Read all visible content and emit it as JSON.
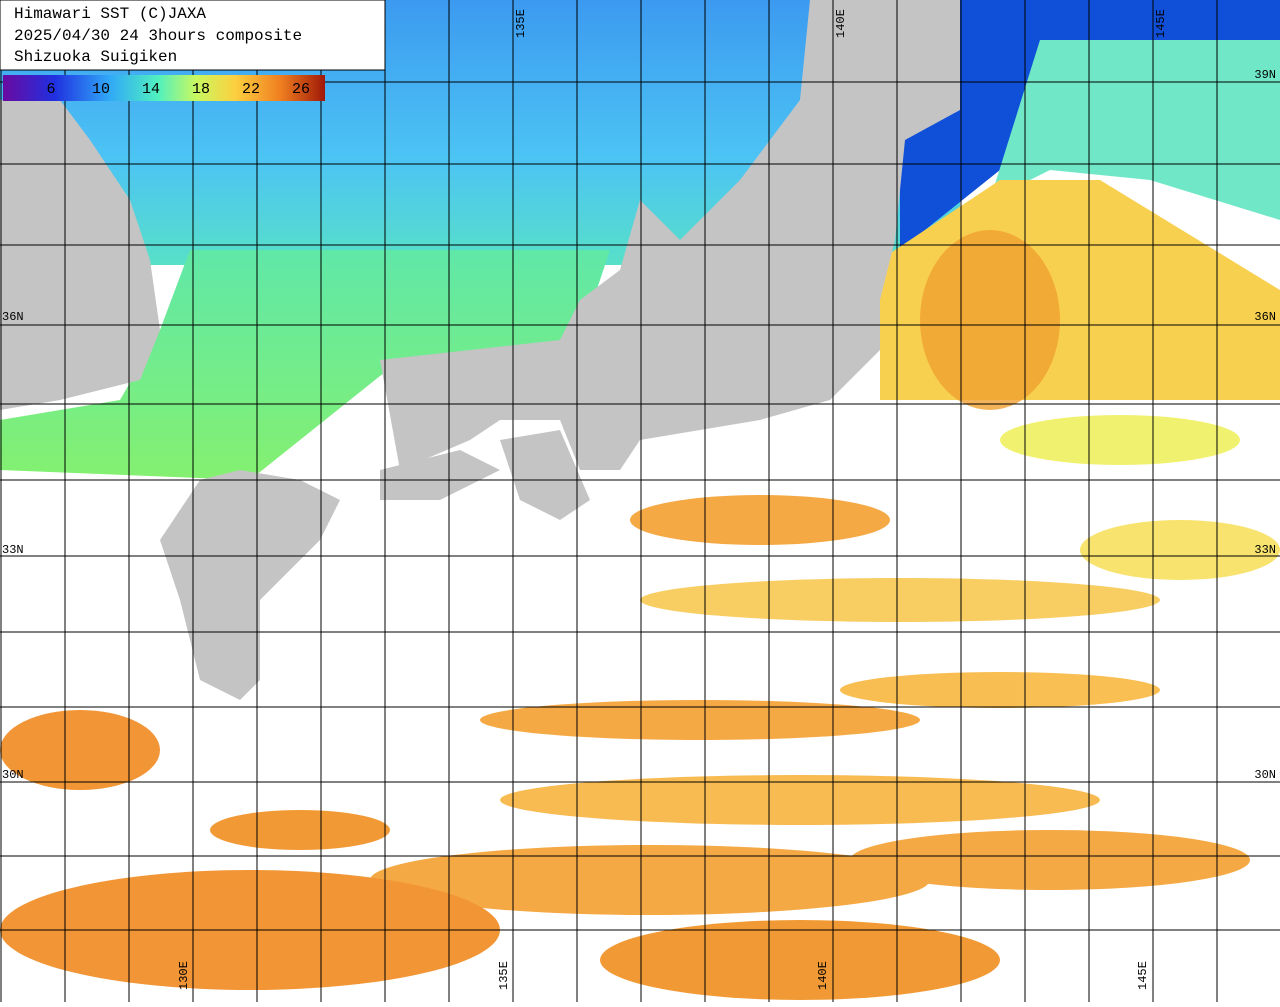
{
  "header": {
    "lines": [
      "Himawari SST (C)JAXA",
      "2025/04/30 24 3hours composite",
      "Shizuoka Suigiken"
    ]
  },
  "colorbar": {
    "labels": [
      6,
      10,
      14,
      18,
      22,
      26
    ]
  },
  "grid": {
    "lat_labels": [
      "39N",
      "36N",
      "33N",
      "30N"
    ],
    "lon_labels_top": [
      "135E",
      "140E",
      "145E"
    ],
    "lon_labels_bottom": [
      "130E",
      "135E",
      "140E",
      "145E"
    ]
  }
}
